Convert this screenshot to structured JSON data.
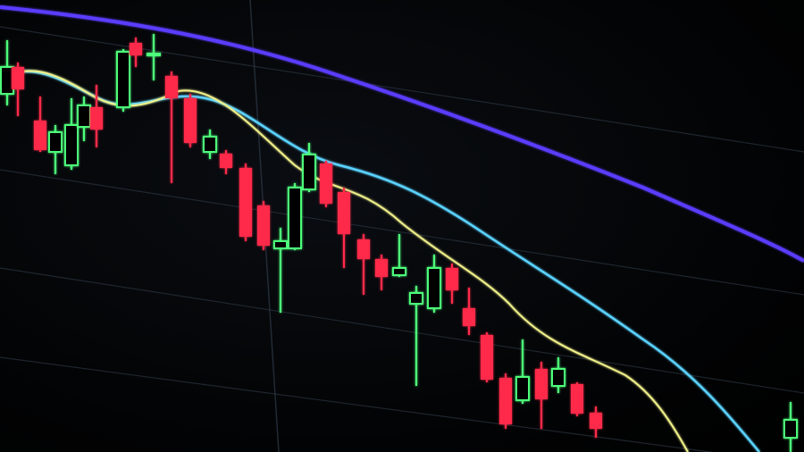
{
  "scene": {
    "subject": "candlestick-chart-on-screen",
    "colors": {
      "bearish": "#ff2a4a",
      "bullish": "#4dff7a",
      "ma_long": "#5a3cff",
      "ma_mid": "#5ad2ff",
      "ma_short": "#f0f08a",
      "grid": "#2a3440",
      "background": "#000000"
    }
  }
}
